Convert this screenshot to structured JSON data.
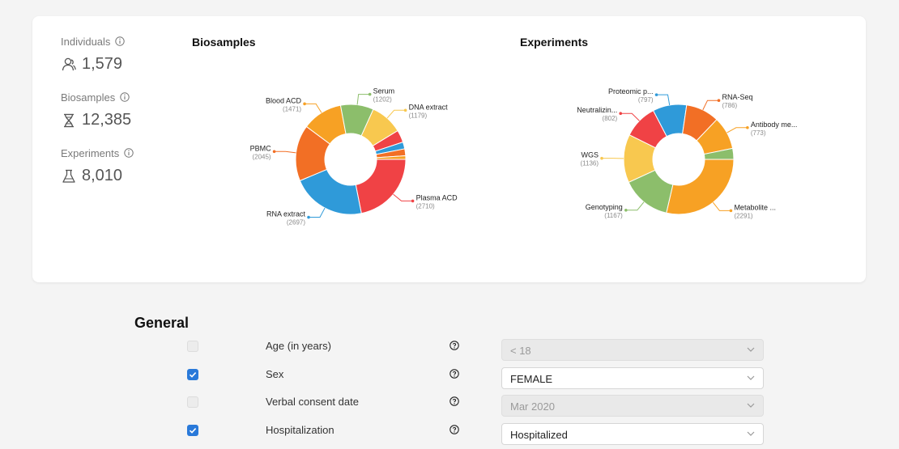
{
  "stats": [
    {
      "label": "Individuals",
      "value": "1,579",
      "icon": "people-icon"
    },
    {
      "label": "Biosamples",
      "value": "12,385",
      "icon": "hourglass-dna-icon"
    },
    {
      "label": "Experiments",
      "value": "8,010",
      "icon": "flask-icon"
    }
  ],
  "colors": {
    "red": "#f04245",
    "blue": "#2f9ad9",
    "orange": "#f26f25",
    "gold": "#f7a124",
    "green": "#8cbe6b",
    "yellow": "#f8c84f"
  },
  "chart_data": [
    {
      "type": "pie",
      "title": "Biosamples",
      "slices": [
        {
          "label": "Plasma ACD",
          "value": 2710,
          "color": "#f04245"
        },
        {
          "label": "RNA extract",
          "value": 2697,
          "color": "#2f9ad9"
        },
        {
          "label": "PBMC",
          "value": 2045,
          "color": "#f26f25"
        },
        {
          "label": "Blood ACD",
          "value": 1471,
          "color": "#f7a124"
        },
        {
          "label": "Serum",
          "value": 1202,
          "color": "#8cbe6b"
        },
        {
          "label": "DNA extract",
          "value": 1179,
          "color": "#f8c84f"
        },
        {
          "label": "",
          "value": 450,
          "color": "#f04245"
        },
        {
          "label": "",
          "value": 250,
          "color": "#2f9ad9"
        },
        {
          "label": "",
          "value": 250,
          "color": "#f26f25"
        },
        {
          "label": "",
          "value": 131,
          "color": "#f7a124"
        }
      ]
    },
    {
      "type": "pie",
      "title": "Experiments",
      "slices": [
        {
          "label": "Metabolite ...",
          "value": 2291,
          "color": "#f7a124"
        },
        {
          "label": "Genotyping",
          "value": 1167,
          "color": "#8cbe6b"
        },
        {
          "label": "WGS",
          "value": 1136,
          "color": "#f8c84f"
        },
        {
          "label": "Neutralizin...",
          "value": 802,
          "color": "#f04245"
        },
        {
          "label": "Proteomic p...",
          "value": 797,
          "color": "#2f9ad9"
        },
        {
          "label": "RNA-Seq",
          "value": 786,
          "color": "#f26f25"
        },
        {
          "label": "Antibody me...",
          "value": 773,
          "color": "#f7a124"
        },
        {
          "label": "",
          "value": 258,
          "color": "#8cbe6b"
        }
      ]
    }
  ],
  "general": {
    "title": "General",
    "fields": [
      {
        "label": "Age (in years)",
        "checked": false,
        "value": "< 18",
        "disabled": true
      },
      {
        "label": "Sex",
        "checked": true,
        "value": "FEMALE",
        "disabled": false
      },
      {
        "label": "Verbal consent date",
        "checked": false,
        "value": "Mar 2020",
        "disabled": true
      },
      {
        "label": "Hospitalization",
        "checked": true,
        "value": "Hospitalized",
        "disabled": false
      }
    ]
  }
}
